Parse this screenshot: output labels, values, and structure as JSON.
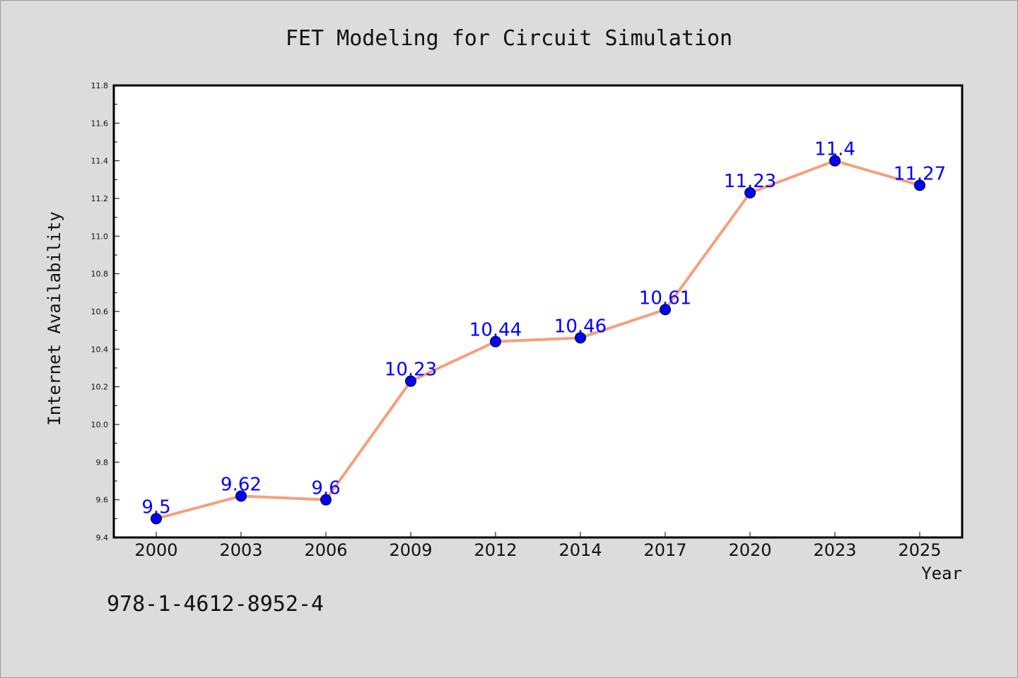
{
  "chart_data": {
    "type": "line",
    "title": "FET Modeling for Circuit Simulation",
    "xlabel": "Year",
    "ylabel": "Internet Availability",
    "categories": [
      "2000",
      "2003",
      "2006",
      "2009",
      "2012",
      "2014",
      "2017",
      "2020",
      "2023",
      "2025"
    ],
    "series": [
      {
        "values": [
          9.5,
          9.62,
          9.6,
          10.23,
          10.44,
          10.46,
          10.61,
          11.23,
          11.4,
          11.27
        ],
        "labels": [
          "9.5",
          "9.62",
          "9.6",
          "10.23",
          "10.44",
          "10.46",
          "10.61",
          "11.23",
          "11.4",
          "11.27"
        ],
        "line_color": "#f4a07e",
        "marker_color": "#0000ff"
      }
    ],
    "ylim": [
      9.4,
      11.8
    ],
    "yticks": [
      "9.4",
      "9.6",
      "9.8",
      "10.0",
      "10.2",
      "10.4",
      "10.6",
      "10.8",
      "11.0",
      "11.2",
      "11.4",
      "11.6",
      "11.8"
    ],
    "grid": false,
    "legend": "none",
    "data_labels": true
  },
  "footer_text": "978-1-4612-8952-4",
  "colors": {
    "background": "#dcdcdc",
    "plot_background": "#ffffff",
    "line": "#f4a07e",
    "marker": "#0000ff",
    "data_label": "#0000ff"
  }
}
